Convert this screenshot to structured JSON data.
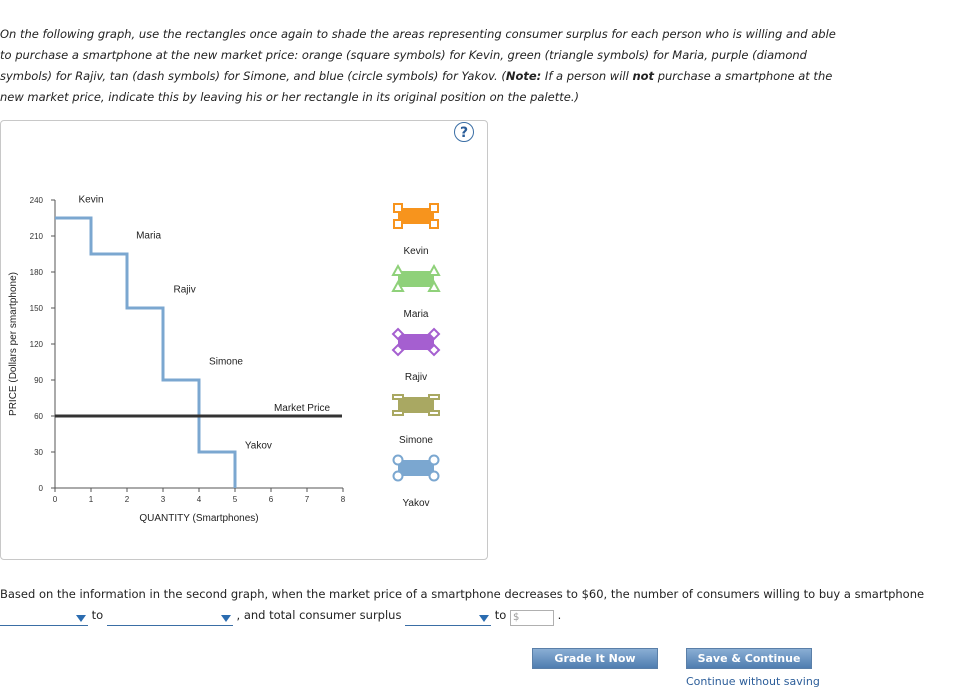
{
  "instructions": {
    "part1": "On the following graph, use the rectangles once again to shade the areas representing consumer surplus for each person who is willing and able to purchase a smartphone at the new market price: orange (square symbols) for Kevin, green (triangle symbols) for Maria, purple (diamond symbols) for Rajiv, tan (dash symbols) for Simone, and blue (circle symbols) for Yakov. (",
    "note_label": "Note:",
    "part2": " If a person will ",
    "not_word": "not",
    "part3": " purchase a smartphone at the new market price, indicate this by leaving his or her rectangle in its original position on the palette.)"
  },
  "help": {
    "glyph": "?"
  },
  "chart_data": {
    "type": "line",
    "xlabel": "QUANTITY (Smartphones)",
    "ylabel": "PRICE (Dollars per smartphone)",
    "xlim": [
      0,
      8
    ],
    "ylim": [
      0,
      240
    ],
    "x_ticks": [
      "0",
      "1",
      "2",
      "3",
      "4",
      "5",
      "6",
      "7",
      "8"
    ],
    "y_ticks": [
      "0",
      "30",
      "60",
      "90",
      "120",
      "150",
      "180",
      "210",
      "240"
    ],
    "demand_steps": [
      {
        "name": "Kevin",
        "price": 225,
        "from": 0,
        "to": 1
      },
      {
        "name": "Maria",
        "price": 195,
        "from": 1,
        "to": 2
      },
      {
        "name": "Rajiv",
        "price": 150,
        "from": 2,
        "to": 3
      },
      {
        "name": "Simone",
        "price": 90,
        "from": 3,
        "to": 4
      },
      {
        "name": "Yakov",
        "price": 30,
        "from": 4,
        "to": 5
      }
    ],
    "market_price": {
      "label": "Market Price",
      "value": 60
    },
    "demand_color": "#7ba7d0",
    "market_price_color": "#333333"
  },
  "palette": [
    {
      "name": "Kevin",
      "color": "#f7941d",
      "symbol": "square"
    },
    {
      "name": "Maria",
      "color": "#8fd17a",
      "symbol": "triangle"
    },
    {
      "name": "Rajiv",
      "color": "#a55fd0",
      "symbol": "diamond"
    },
    {
      "name": "Simone",
      "color": "#a9a862",
      "symbol": "dash"
    },
    {
      "name": "Yakov",
      "color": "#7ba7d0",
      "symbol": "circle"
    }
  ],
  "question": {
    "part1": "Based on the information in the second graph, when the market price of a smartphone decreases to $60, the number of consumers willing to buy a smartphone",
    "to1": "to",
    "part2": ", and total consumer surplus",
    "to2": "to",
    "dollar_placeholder": "$",
    "period": "."
  },
  "buttons": {
    "grade": "Grade It Now",
    "save": "Save & Continue",
    "continue_link": "Continue without saving"
  }
}
